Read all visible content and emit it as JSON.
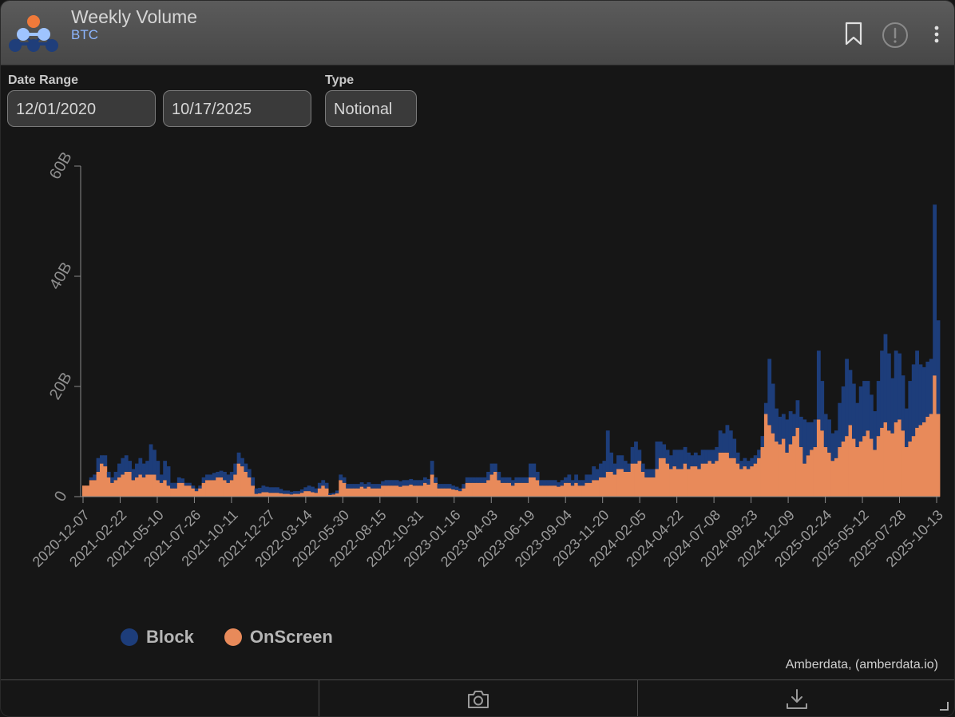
{
  "header": {
    "title": "Weekly Volume",
    "subtitle": "BTC",
    "icons": [
      "bookmark-icon",
      "info-icon",
      "more-vertical-icon"
    ]
  },
  "controls": {
    "date_range_label": "Date Range",
    "start_date": "12/01/2020",
    "end_date": "10/17/2025",
    "type_label": "Type",
    "type_value": "Notional"
  },
  "colors": {
    "block": "#1d3d7a",
    "onscreen": "#e88a5a",
    "axis": "#8a8a8a",
    "logo_orange": "#f07a3a",
    "logo_light": "#9fc4ff",
    "logo_dark": "#1f3e7a"
  },
  "legend": [
    {
      "label": "Block",
      "color": "#1d3d7a"
    },
    {
      "label": "OnScreen",
      "color": "#e88a5a"
    }
  ],
  "credit": "Amberdata, (amberdata.io)",
  "footer": {
    "icons": [
      "camera-icon",
      "download-icon"
    ]
  },
  "chart_data": {
    "type": "bar",
    "stacked": true,
    "title": "Weekly Volume",
    "xlabel": "",
    "ylabel": "",
    "ylim": [
      0,
      60
    ],
    "yunit": "B",
    "y_ticks": [
      "0",
      "20B",
      "40B",
      "60B"
    ],
    "x_tick_labels": [
      "2020-12-07",
      "2021-02-22",
      "2021-05-10",
      "2021-07-26",
      "2021-10-11",
      "2021-12-27",
      "2022-03-14",
      "2022-05-30",
      "2022-08-15",
      "2022-10-31",
      "2023-01-16",
      "2023-04-03",
      "2023-06-19",
      "2023-09-04",
      "2023-11-20",
      "2024-02-05",
      "2024-04-22",
      "2024-07-08",
      "2024-09-23",
      "2024-12-09",
      "2025-02-24",
      "2025-05-12",
      "2025-07-28",
      "2025-10-13"
    ],
    "series": [
      {
        "name": "OnScreen",
        "color": "#e88a5a",
        "values": [
          2.0,
          2.0,
          3.0,
          3.0,
          4.5,
          6.0,
          5.5,
          3.5,
          2.5,
          3.0,
          3.5,
          4.0,
          4.5,
          4.5,
          3.0,
          3.5,
          4.0,
          3.5,
          4.0,
          4.0,
          4.0,
          3.0,
          2.5,
          3.0,
          2.0,
          1.5,
          1.5,
          2.5,
          2.5,
          2.0,
          2.0,
          1.5,
          1.0,
          1.5,
          2.5,
          3.0,
          3.0,
          3.0,
          3.5,
          3.5,
          3.0,
          2.5,
          3.0,
          4.0,
          6.0,
          5.5,
          4.5,
          3.5,
          2.0,
          0.5,
          0.6,
          0.8,
          0.8,
          0.7,
          0.7,
          0.7,
          0.6,
          0.5,
          0.5,
          0.4,
          0.5,
          0.5,
          0.7,
          1.0,
          1.0,
          0.8,
          0.7,
          1.5,
          2.0,
          1.5,
          0.3,
          0.4,
          0.6,
          3.0,
          2.5,
          1.5,
          1.5,
          1.5,
          1.5,
          1.8,
          1.5,
          1.8,
          1.5,
          1.5,
          1.5,
          2.0,
          2.0,
          2.0,
          2.0,
          2.0,
          1.8,
          2.0,
          2.0,
          2.2,
          2.0,
          2.0,
          2.0,
          2.5,
          2.2,
          4.0,
          2.5,
          1.5,
          1.5,
          1.5,
          1.5,
          1.3,
          1.2,
          1.0,
          1.5,
          2.5,
          2.5,
          2.5,
          2.5,
          2.5,
          2.5,
          3.0,
          4.0,
          4.5,
          3.0,
          2.5,
          2.5,
          2.5,
          2.0,
          2.5,
          2.5,
          2.5,
          2.5,
          3.5,
          3.5,
          3.0,
          2.0,
          2.0,
          2.0,
          2.0,
          2.0,
          1.8,
          2.0,
          2.5,
          2.5,
          2.0,
          2.5,
          2.0,
          2.0,
          2.5,
          2.5,
          3.0,
          3.0,
          3.5,
          3.5,
          4.5,
          4.5,
          4.0,
          5.0,
          5.0,
          4.5,
          4.5,
          6.0,
          6.0,
          6.5,
          4.5,
          3.5,
          3.5,
          3.5,
          5.0,
          7.0,
          7.0,
          6.0,
          5.0,
          5.5,
          5.0,
          5.0,
          6.0,
          5.0,
          5.5,
          5.5,
          5.0,
          6.0,
          6.0,
          6.5,
          6.0,
          6.5,
          8.0,
          8.0,
          8.0,
          7.0,
          7.0,
          6.0,
          5.0,
          5.5,
          5.0,
          5.5,
          6.0,
          7.0,
          9.0,
          15.0,
          13.0,
          11.5,
          10.0,
          9.5,
          10.5,
          8.0,
          9.5,
          11.0,
          12.5,
          9.0,
          6.0,
          7.5,
          8.5,
          9.0,
          14.0,
          12.0,
          9.0,
          8.0,
          6.5,
          7.0,
          9.0,
          10.0,
          11.0,
          13.0,
          10.5,
          9.0,
          10.0,
          11.0,
          12.0,
          10.5,
          8.5,
          11.0,
          12.5,
          13.5,
          12.0,
          11.5,
          13.5,
          14.0,
          12.0,
          9.0,
          10.0,
          11.0,
          12.5,
          13.0,
          13.5,
          14.5,
          15.0,
          22.0,
          15.0
        ]
      },
      {
        "name": "Block",
        "color": "#1d3d7a",
        "values": [
          0.0,
          0.0,
          0.5,
          1.0,
          2.5,
          1.5,
          2.0,
          1.0,
          1.0,
          1.5,
          2.5,
          3.0,
          3.0,
          2.0,
          2.0,
          2.5,
          3.0,
          2.5,
          2.5,
          5.5,
          4.5,
          3.5,
          1.5,
          3.5,
          3.5,
          1.0,
          1.0,
          1.0,
          0.8,
          0.5,
          0.5,
          0.5,
          0.5,
          0.5,
          1.0,
          1.0,
          1.0,
          1.3,
          1.0,
          1.2,
          1.5,
          1.5,
          1.5,
          2.0,
          2.0,
          1.5,
          1.5,
          1.5,
          1.5,
          1.0,
          1.0,
          1.2,
          1.0,
          1.0,
          1.0,
          1.0,
          0.8,
          0.6,
          0.6,
          0.5,
          0.5,
          0.5,
          0.6,
          0.7,
          1.0,
          1.0,
          0.8,
          1.0,
          1.0,
          1.0,
          0.3,
          0.3,
          0.5,
          1.0,
          1.0,
          0.8,
          0.8,
          0.8,
          0.8,
          0.8,
          0.8,
          0.8,
          0.8,
          0.8,
          0.8,
          0.8,
          1.0,
          1.0,
          1.0,
          1.0,
          1.0,
          1.0,
          1.0,
          1.0,
          1.0,
          1.0,
          1.0,
          1.0,
          1.0,
          2.5,
          1.0,
          0.8,
          0.8,
          0.8,
          0.8,
          0.7,
          0.6,
          0.5,
          0.8,
          1.0,
          1.0,
          1.0,
          1.0,
          1.0,
          1.0,
          1.5,
          2.0,
          1.5,
          1.5,
          1.0,
          1.0,
          1.0,
          1.0,
          1.0,
          1.0,
          1.0,
          1.0,
          2.5,
          2.5,
          1.5,
          1.0,
          1.0,
          1.0,
          1.0,
          1.0,
          0.8,
          1.0,
          1.0,
          1.5,
          1.0,
          1.5,
          1.0,
          1.0,
          1.5,
          1.5,
          2.5,
          2.0,
          2.5,
          3.0,
          7.5,
          3.5,
          2.0,
          2.5,
          2.5,
          2.0,
          1.5,
          3.0,
          4.0,
          2.0,
          1.5,
          1.5,
          1.5,
          1.5,
          5.0,
          3.0,
          2.5,
          2.5,
          2.5,
          3.0,
          3.5,
          3.5,
          3.0,
          3.0,
          2.0,
          2.5,
          2.5,
          2.5,
          2.5,
          2.0,
          2.5,
          2.5,
          4.0,
          3.5,
          5.0,
          5.0,
          3.5,
          2.0,
          1.5,
          1.5,
          1.5,
          1.5,
          1.5,
          1.5,
          2.0,
          2.0,
          12.0,
          9.0,
          6.0,
          5.0,
          4.5,
          6.0,
          6.0,
          4.0,
          5.0,
          5.5,
          8.0,
          6.0,
          5.0,
          5.0,
          12.5,
          9.0,
          6.0,
          6.0,
          5.0,
          5.0,
          8.0,
          10.0,
          14.0,
          10.0,
          10.0,
          8.0,
          10.0,
          10.0,
          9.0,
          8.0,
          7.0,
          10.0,
          14.0,
          16.0,
          14.0,
          10.0,
          13.0,
          12.0,
          10.0,
          7.0,
          11.0,
          13.0,
          14.0,
          11.0,
          10.0,
          10.0,
          10.0,
          31.0,
          17.0
        ]
      }
    ]
  }
}
